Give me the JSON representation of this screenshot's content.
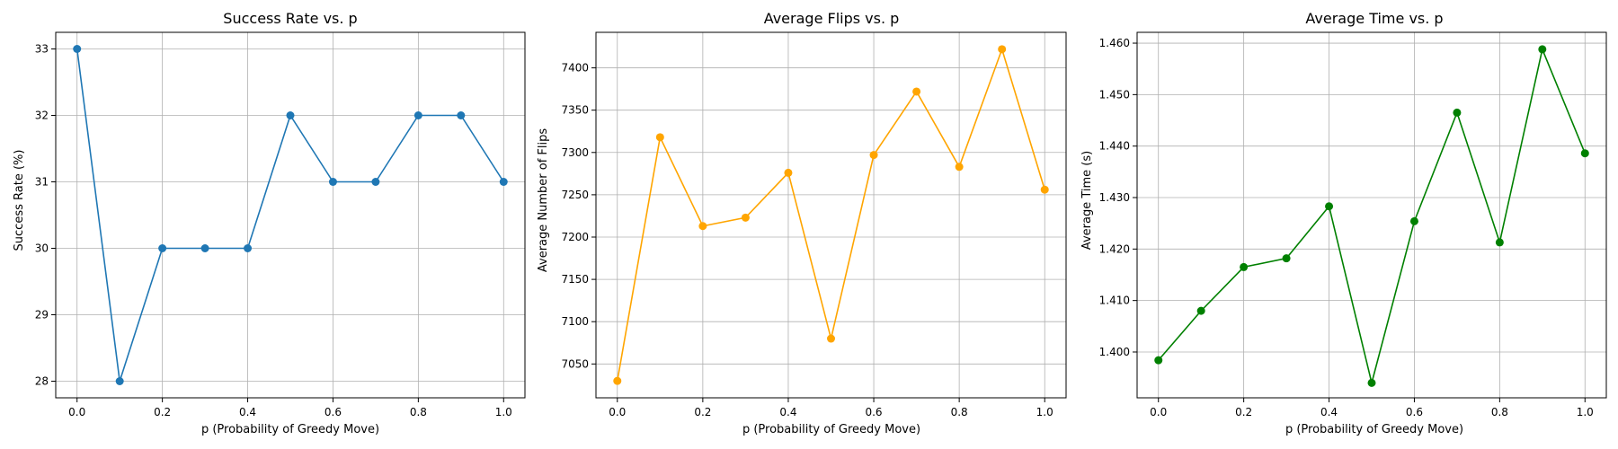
{
  "chart_data": [
    {
      "type": "line",
      "title": "Success Rate vs. p",
      "xlabel": "p (Probability of Greedy Move)",
      "ylabel": "Success Rate (%)",
      "color": "#1f77b4",
      "marker": "circle",
      "grid": true,
      "xlim": [
        -0.05,
        1.05
      ],
      "ylim": [
        27.75,
        33.25
      ],
      "x": [
        0.0,
        0.1,
        0.2,
        0.3,
        0.4,
        0.5,
        0.6,
        0.7,
        0.8,
        0.9,
        1.0
      ],
      "y": [
        33,
        28,
        30,
        30,
        30,
        32,
        31,
        31,
        32,
        32,
        31
      ],
      "xticks": [
        0.0,
        0.2,
        0.4,
        0.6,
        0.8,
        1.0
      ],
      "xtick_labels": [
        "0.0",
        "0.2",
        "0.4",
        "0.6",
        "0.8",
        "1.0"
      ],
      "yticks": [
        28,
        29,
        30,
        31,
        32,
        33
      ],
      "ytick_labels": [
        "28",
        "29",
        "30",
        "31",
        "32",
        "33"
      ]
    },
    {
      "type": "line",
      "title": "Average Flips vs. p",
      "xlabel": "p (Probability of Greedy Move)",
      "ylabel": "Average Number of Flips",
      "color": "#ffa500",
      "marker": "circle",
      "grid": true,
      "xlim": [
        -0.05,
        1.05
      ],
      "ylim": [
        7010,
        7442
      ],
      "x": [
        0.0,
        0.1,
        0.2,
        0.3,
        0.4,
        0.5,
        0.6,
        0.7,
        0.8,
        0.9,
        1.0
      ],
      "y": [
        7030,
        7318,
        7213,
        7223,
        7276,
        7080,
        7297,
        7372,
        7283,
        7422,
        7256
      ],
      "xticks": [
        0.0,
        0.2,
        0.4,
        0.6,
        0.8,
        1.0
      ],
      "xtick_labels": [
        "0.0",
        "0.2",
        "0.4",
        "0.6",
        "0.8",
        "1.0"
      ],
      "yticks": [
        7050,
        7100,
        7150,
        7200,
        7250,
        7300,
        7350,
        7400
      ],
      "ytick_labels": [
        "7050",
        "7100",
        "7150",
        "7200",
        "7250",
        "7300",
        "7350",
        "7400"
      ]
    },
    {
      "type": "line",
      "title": "Average Time vs. p",
      "xlabel": "p (Probability of Greedy Move)",
      "ylabel": "Average Time (s)",
      "color": "#008000",
      "marker": "circle",
      "grid": true,
      "xlim": [
        -0.05,
        1.05
      ],
      "ylim": [
        1.3911,
        1.4621
      ],
      "x": [
        0.0,
        0.1,
        0.2,
        0.3,
        0.4,
        0.5,
        0.6,
        0.7,
        0.8,
        0.9,
        1.0
      ],
      "y": [
        1.3984,
        1.408,
        1.4165,
        1.4182,
        1.4283,
        1.394,
        1.4254,
        1.4465,
        1.4213,
        1.4588,
        1.4386
      ],
      "xticks": [
        0.0,
        0.2,
        0.4,
        0.6,
        0.8,
        1.0
      ],
      "xtick_labels": [
        "0.0",
        "0.2",
        "0.4",
        "0.6",
        "0.8",
        "1.0"
      ],
      "yticks": [
        1.4,
        1.41,
        1.42,
        1.43,
        1.44,
        1.45,
        1.46
      ],
      "ytick_labels": [
        "1.400",
        "1.410",
        "1.420",
        "1.430",
        "1.440",
        "1.450",
        "1.460"
      ]
    }
  ]
}
